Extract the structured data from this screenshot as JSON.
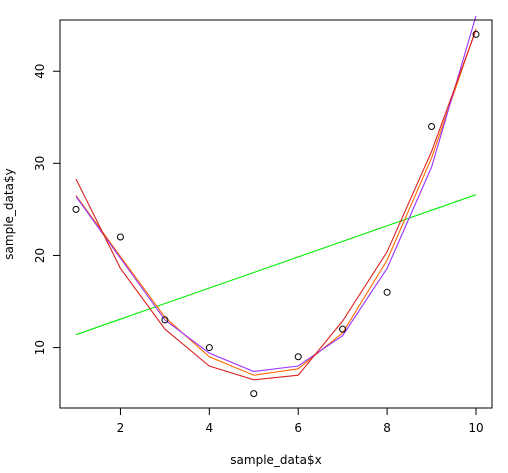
{
  "chart_data": {
    "type": "scatter",
    "xlabel": "sample_data$x",
    "ylabel": "sample_data$y",
    "xlim": [
      0.64,
      10.36
    ],
    "ylim": [
      3.44,
      45.56
    ],
    "x_ticks": [
      2,
      4,
      6,
      8,
      10
    ],
    "y_ticks": [
      10,
      20,
      30,
      40
    ],
    "x_tick_labels": [
      "2",
      "4",
      "6",
      "8",
      "10"
    ],
    "y_tick_labels": [
      "10",
      "20",
      "30",
      "40"
    ],
    "grid": false,
    "legend": "none",
    "points": {
      "x": [
        1,
        2,
        3,
        4,
        5,
        6,
        7,
        8,
        9,
        10
      ],
      "y": [
        25,
        22,
        13,
        10,
        5,
        9,
        12,
        16,
        34,
        44
      ]
    },
    "series": [
      {
        "kind": "linear fit",
        "color": "#00ee00",
        "x": [
          1,
          10
        ],
        "y": [
          11.4,
          26.6
        ]
      },
      {
        "kind": "polynomial fit",
        "color": "#ff6a00",
        "x": [
          1,
          2,
          3,
          4,
          5,
          6,
          7,
          8,
          9,
          10
        ],
        "y": [
          26.5,
          19.9,
          13.3,
          9.0,
          7.0,
          7.7,
          11.6,
          19.5,
          30.6,
          44.6
        ]
      },
      {
        "kind": "polynomial fit",
        "color": "#9933ff",
        "x": [
          1,
          2,
          3,
          4,
          5,
          6,
          7,
          8,
          9,
          10
        ],
        "y": [
          26.4,
          19.7,
          13.0,
          9.4,
          7.4,
          8.0,
          11.3,
          18.6,
          29.6,
          46.0
        ]
      },
      {
        "kind": "polynomial fit",
        "color": "#dd2222",
        "x": [
          1,
          2,
          3,
          4,
          5,
          6,
          7,
          8,
          9,
          10
        ],
        "y": [
          28.3,
          18.6,
          12.0,
          8.0,
          6.5,
          7.0,
          12.9,
          20.4,
          31.3,
          44.5
        ]
      }
    ]
  }
}
